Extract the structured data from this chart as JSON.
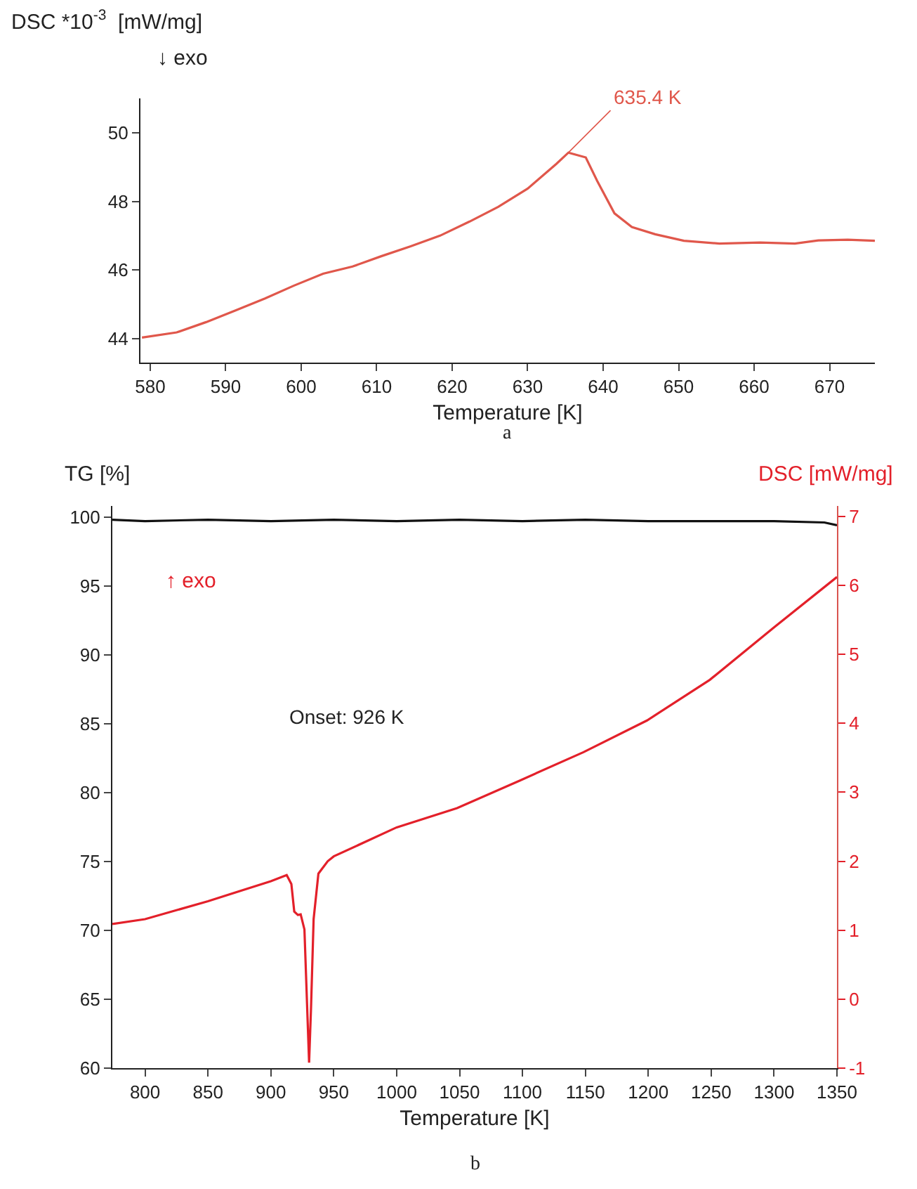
{
  "chart_data": [
    {
      "type": "line",
      "xlabel": "Temperature [K]",
      "ylabel": "DSC *10$^{-3}$  [mW/mg]",
      "annotations": [
        "↓ exo",
        "a",
        {
          "text": "635.4 K",
          "x": 635.4,
          "y": 49.42
        }
      ],
      "xlim": [
        578.7,
        676
      ],
      "xticks": [
        580,
        590,
        600,
        610,
        620,
        630,
        640,
        650,
        660,
        670
      ],
      "ylim": [
        43.3,
        51
      ],
      "yticks": [
        44,
        46,
        48,
        50
      ],
      "grid": false,
      "marker": "none",
      "line_style": "solid",
      "series": [
        {
          "color": "#e0574b",
          "x": [
            578.9,
            583.5,
            587.4,
            591.3,
            595.2,
            599,
            602.9,
            606.8,
            610.6,
            614.5,
            618.4,
            622.3,
            626.1,
            630,
            633.8,
            635.4,
            637.7,
            639.2,
            641.5,
            643.8,
            646.9,
            650.7,
            655.4,
            660.8,
            665.4,
            668.5,
            672.4,
            676
          ],
          "values": [
            44.03,
            44.18,
            44.48,
            44.82,
            45.17,
            45.54,
            45.89,
            46.1,
            46.4,
            46.69,
            47.0,
            47.41,
            47.84,
            48.37,
            49.09,
            49.42,
            49.28,
            48.6,
            47.65,
            47.25,
            47.04,
            46.85,
            46.77,
            46.8,
            46.77,
            46.86,
            46.88,
            46.85
          ]
        }
      ]
    },
    {
      "type": "line",
      "xlabel": "Temperature [K]",
      "ylabel": "TG [%]",
      "y2label": "DSC [mW/mg]",
      "annotations": [
        "↑ exo",
        "b",
        "Onset: 926 K"
      ],
      "xlim": [
        774,
        1350
      ],
      "xticks": [
        800,
        850,
        900,
        950,
        1000,
        1050,
        1100,
        1150,
        1200,
        1250,
        1300,
        1350
      ],
      "ylim": [
        60,
        100.8
      ],
      "yticks": [
        60,
        65,
        70,
        75,
        80,
        85,
        90,
        95,
        100
      ],
      "y2lim": [
        -1,
        7.15
      ],
      "y2ticks": [
        -1,
        0,
        1,
        2,
        3,
        4,
        5,
        6,
        7
      ],
      "grid": false,
      "marker": "none",
      "line_style": "solid",
      "series": [
        {
          "color": "#111111",
          "x": [
            774,
            800,
            850,
            900,
            950,
            1000,
            1050,
            1100,
            1150,
            1200,
            1250,
            1300,
            1340,
            1350
          ],
          "values": [
            99.8,
            99.7,
            99.8,
            99.7,
            99.8,
            99.7,
            99.8,
            99.7,
            99.8,
            99.7,
            99.7,
            99.7,
            99.6,
            99.4
          ]
        },
        {
          "color": "#e3202a",
          "axis": "y2",
          "x": [
            774,
            800,
            850,
            900,
            912.6,
            916.3,
            918.6,
            921.5,
            923.7,
            926.7,
            930.4,
            931.9,
            934,
            937.8,
            945.2,
            950,
            1000,
            1048,
            1098,
            1148.5,
            1199,
            1249,
            1300,
            1350
          ],
          "values": [
            1.09,
            1.16,
            1.42,
            1.71,
            1.8,
            1.67,
            1.27,
            1.22,
            1.23,
            1.01,
            -0.92,
            -0.15,
            1.16,
            1.82,
            2.0,
            2.07,
            2.49,
            2.77,
            3.17,
            3.58,
            4.04,
            4.63,
            5.39,
            6.12
          ]
        }
      ]
    }
  ]
}
